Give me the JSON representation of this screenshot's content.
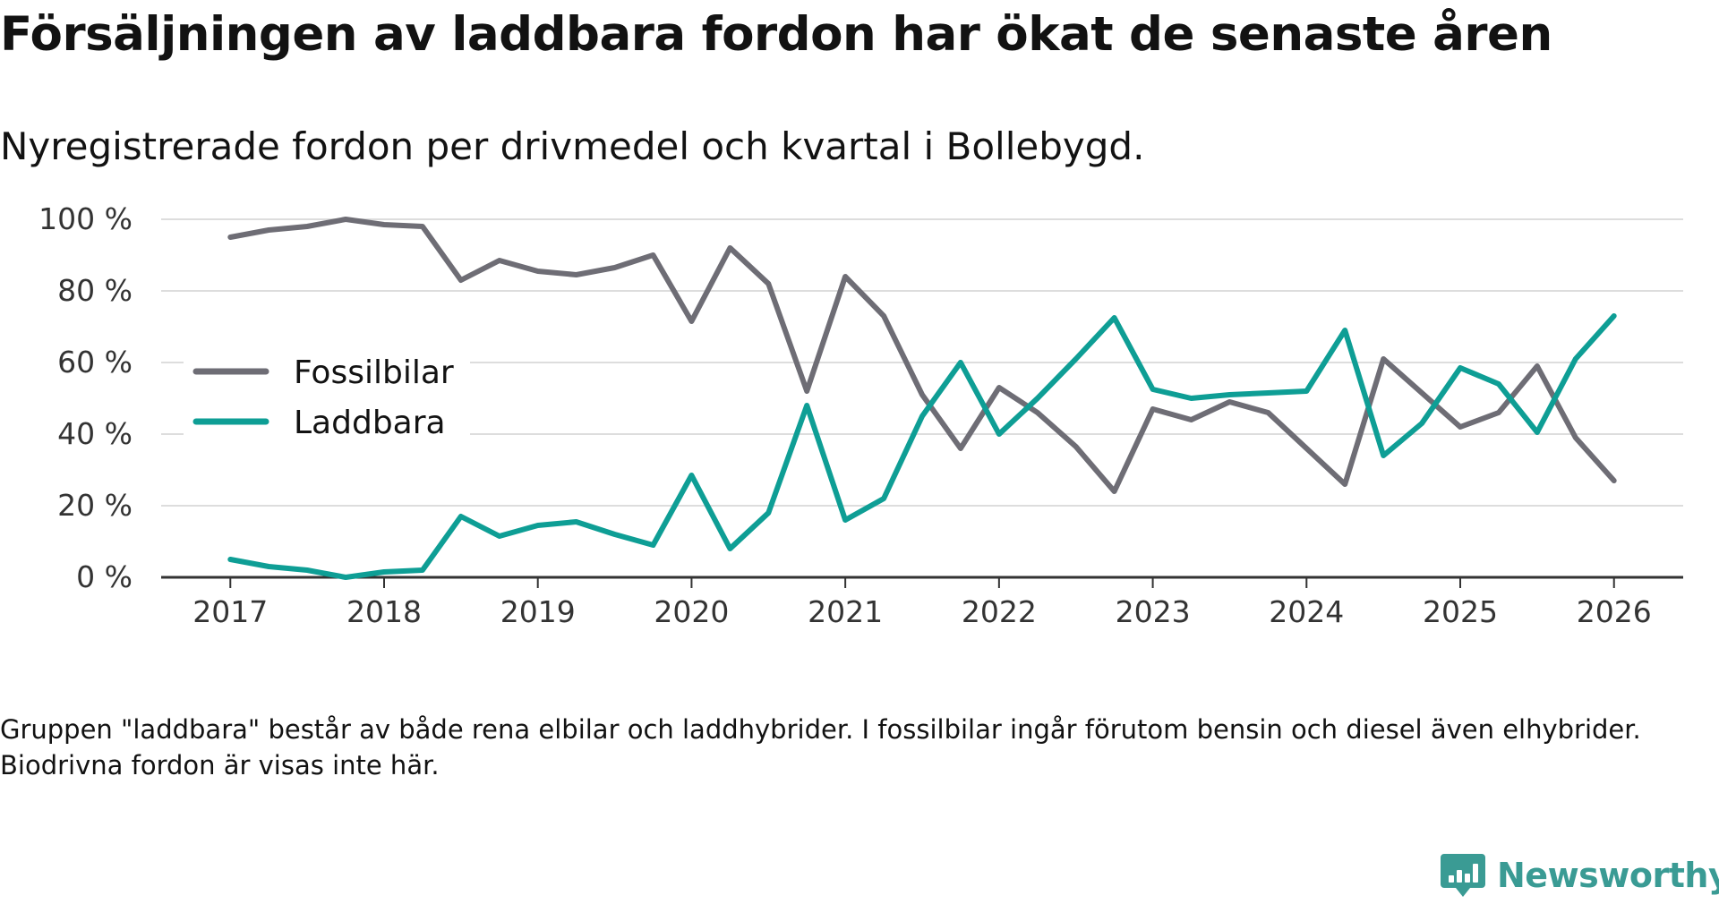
{
  "title": "Försäljningen av laddbara fordon har ökat de senaste åren",
  "subtitle": "Nyregistrerade fordon per drivmedel och kvartal i Bollebygd.",
  "note": "Gruppen \"laddbara\" består av både rena elbilar och laddhybrider. I fossilbilar ingår förutom bensin och diesel även elhybrider. Biodrivna fordon är visas inte här.",
  "brand": {
    "name": "Newsworthy",
    "icon": "newsworthy-logo-icon"
  },
  "colors": {
    "fossil": "#6e6d75",
    "laddbara": "#0e9e95",
    "grid": "#dddddd",
    "axis": "#333333",
    "brand": "#3a9b94"
  },
  "chart_data": {
    "type": "line",
    "title": "Försäljningen av laddbara fordon har ökat de senaste åren",
    "xlabel": "",
    "ylabel": "",
    "x": [
      2017.0,
      2017.25,
      2017.5,
      2017.75,
      2018.0,
      2018.25,
      2018.5,
      2018.75,
      2019.0,
      2019.25,
      2019.5,
      2019.75,
      2020.0,
      2020.25,
      2020.5,
      2020.75,
      2021.0,
      2021.25,
      2021.5,
      2021.75,
      2022.0,
      2022.25,
      2022.5,
      2022.75,
      2023.0,
      2023.25,
      2023.5,
      2023.75,
      2024.0,
      2024.25,
      2024.5,
      2024.75,
      2025.0,
      2025.25,
      2025.5,
      2025.75,
      2026.0
    ],
    "xlim": [
      2016.55,
      2026.45
    ],
    "ylim": [
      0,
      100
    ],
    "xticks": [
      2017,
      2018,
      2019,
      2020,
      2021,
      2022,
      2023,
      2024,
      2025,
      2026
    ],
    "xtick_labels": [
      "2017",
      "2018",
      "2019",
      "2020",
      "2021",
      "2022",
      "2023",
      "2024",
      "2025",
      "2026"
    ],
    "yticks": [
      0,
      20,
      40,
      60,
      80,
      100
    ],
    "ytick_labels": [
      "0 %",
      "20 %",
      "40 %",
      "60 %",
      "80 %",
      "100 %"
    ],
    "grid": true,
    "legend_position": "center-left",
    "series": [
      {
        "name": "Fossilbilar",
        "color_key": "fossil",
        "values": [
          95,
          97,
          98,
          100,
          98.5,
          98,
          83,
          88.5,
          85.5,
          84.5,
          86.5,
          90,
          71.5,
          92,
          82,
          52,
          84,
          73,
          51,
          36,
          53,
          46,
          36.5,
          24,
          47,
          44,
          49,
          46,
          36,
          26,
          61,
          51.5,
          42,
          46,
          59,
          39,
          27
        ]
      },
      {
        "name": "Laddbara",
        "color_key": "laddbara",
        "values": [
          5,
          3,
          2,
          0,
          1.5,
          2,
          17,
          11.5,
          14.5,
          15.5,
          12,
          9,
          28.5,
          8,
          18,
          48,
          16,
          22,
          45,
          60,
          40,
          50,
          61,
          72.5,
          52.5,
          50,
          51,
          51.5,
          52,
          69,
          34,
          43,
          58.5,
          54,
          40.5,
          61,
          73
        ]
      }
    ]
  }
}
